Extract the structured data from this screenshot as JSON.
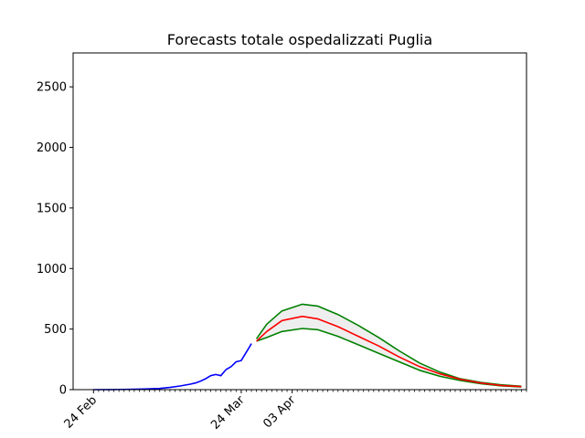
{
  "chart_data": {
    "type": "line",
    "title": "Forecasts totale ospedalizzati Puglia",
    "xlabel": "",
    "ylabel": "",
    "x_axis": {
      "unit": "day",
      "range": [
        "2020-02-20",
        "2020-05-19"
      ],
      "labeled_ticks": [
        {
          "date": "2020-02-24",
          "label": "24 Feb"
        },
        {
          "date": "2020-03-24",
          "label": "24 Mar"
        },
        {
          "date": "2020-04-03",
          "label": "03 Apr"
        }
      ],
      "minor_ticks": "daily from 2020-02-24 to 2020-05-19"
    },
    "ylim": [
      0,
      2780
    ],
    "yticks": [
      0,
      500,
      1000,
      1500,
      2000,
      2500
    ],
    "grid": false,
    "legend": "none",
    "colors": {
      "observed": "#0000ff",
      "forecast": "#ff0000",
      "bound": "#008000",
      "band_fill": "#eeeeee"
    },
    "series": [
      {
        "role": "observed",
        "points": [
          [
            "2020-02-24",
            0
          ],
          [
            "2020-02-28",
            1
          ],
          [
            "2020-03-02",
            2
          ],
          [
            "2020-03-05",
            5
          ],
          [
            "2020-03-08",
            10
          ],
          [
            "2020-03-10",
            18
          ],
          [
            "2020-03-12",
            30
          ],
          [
            "2020-03-14",
            45
          ],
          [
            "2020-03-15",
            55
          ],
          [
            "2020-03-16",
            70
          ],
          [
            "2020-03-17",
            90
          ],
          [
            "2020-03-18",
            115
          ],
          [
            "2020-03-19",
            125
          ],
          [
            "2020-03-20",
            115
          ],
          [
            "2020-03-21",
            165
          ],
          [
            "2020-03-22",
            190
          ],
          [
            "2020-03-23",
            230
          ],
          [
            "2020-03-24",
            240
          ],
          [
            "2020-03-25",
            310
          ],
          [
            "2020-03-26",
            380
          ]
        ]
      },
      {
        "role": "forecast",
        "points": [
          [
            "2020-03-27",
            400
          ],
          [
            "2020-03-29",
            480
          ],
          [
            "2020-04-01",
            570
          ],
          [
            "2020-04-05",
            605
          ],
          [
            "2020-04-08",
            585
          ],
          [
            "2020-04-12",
            520
          ],
          [
            "2020-04-16",
            440
          ],
          [
            "2020-04-20",
            360
          ],
          [
            "2020-04-24",
            270
          ],
          [
            "2020-04-28",
            190
          ],
          [
            "2020-05-02",
            130
          ],
          [
            "2020-05-06",
            85
          ],
          [
            "2020-05-10",
            55
          ],
          [
            "2020-05-14",
            35
          ],
          [
            "2020-05-18",
            25
          ]
        ]
      },
      {
        "role": "upper_bound",
        "points": [
          [
            "2020-03-27",
            420
          ],
          [
            "2020-03-29",
            540
          ],
          [
            "2020-04-01",
            650
          ],
          [
            "2020-04-05",
            705
          ],
          [
            "2020-04-08",
            690
          ],
          [
            "2020-04-12",
            620
          ],
          [
            "2020-04-16",
            530
          ],
          [
            "2020-04-20",
            430
          ],
          [
            "2020-04-24",
            320
          ],
          [
            "2020-04-28",
            220
          ],
          [
            "2020-05-02",
            145
          ],
          [
            "2020-05-06",
            90
          ],
          [
            "2020-05-10",
            60
          ],
          [
            "2020-05-14",
            40
          ],
          [
            "2020-05-18",
            28
          ]
        ]
      },
      {
        "role": "lower_bound",
        "points": [
          [
            "2020-03-27",
            400
          ],
          [
            "2020-03-29",
            430
          ],
          [
            "2020-04-01",
            480
          ],
          [
            "2020-04-05",
            505
          ],
          [
            "2020-04-08",
            495
          ],
          [
            "2020-04-12",
            440
          ],
          [
            "2020-04-16",
            370
          ],
          [
            "2020-04-20",
            300
          ],
          [
            "2020-04-24",
            230
          ],
          [
            "2020-04-28",
            160
          ],
          [
            "2020-05-02",
            110
          ],
          [
            "2020-05-06",
            75
          ],
          [
            "2020-05-10",
            50
          ],
          [
            "2020-05-14",
            32
          ],
          [
            "2020-05-18",
            22
          ]
        ]
      }
    ]
  }
}
